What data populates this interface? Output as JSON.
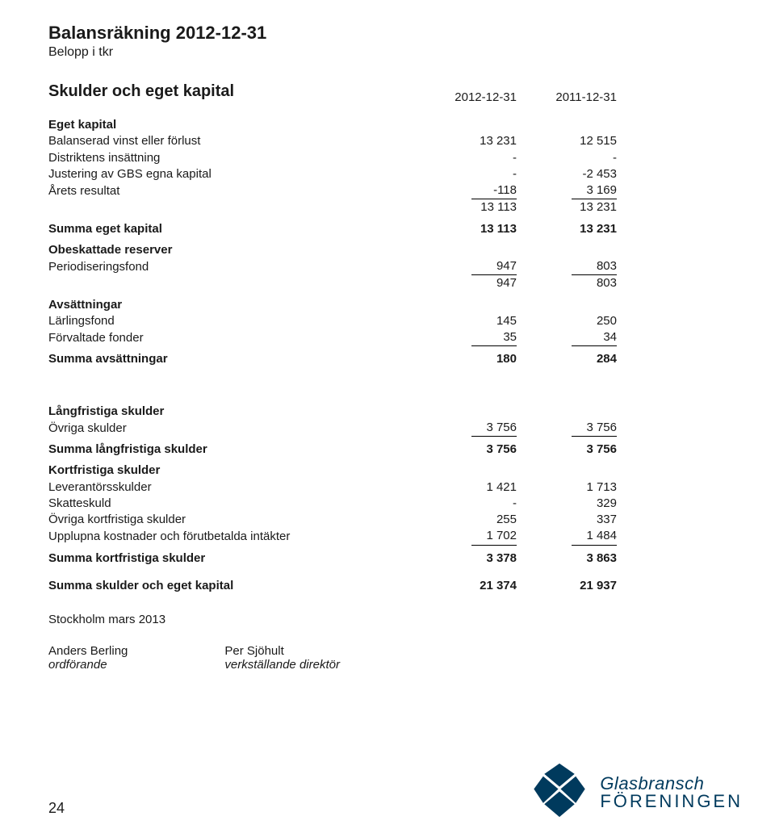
{
  "title": "Balansräkning  2012-12-31",
  "subtitle": "Belopp i tkr",
  "section_heading": "Skulder och eget kapital",
  "col_headers": [
    "2012-12-31",
    "2011-12-31"
  ],
  "groups": [
    {
      "heading": "Eget kapital",
      "rows": [
        {
          "label": "Balanserad vinst eller förlust",
          "c1": "13 231",
          "c2": "12 515"
        },
        {
          "label": "Distriktens insättning",
          "c1": "-",
          "c2": "-"
        },
        {
          "label": "Justering av GBS egna kapital",
          "c1": "-",
          "c2": "-2 453"
        },
        {
          "label": "Årets resultat",
          "c1": "-118",
          "c2": "3 169",
          "underline": true
        },
        {
          "label": "",
          "c1": "13 113",
          "c2": "13 231"
        }
      ],
      "summary": {
        "label": "Summa eget kapital",
        "c1": "13 113",
        "c2": "13 231"
      }
    },
    {
      "heading": "Obeskattade reserver",
      "rows": [
        {
          "label": "Periodiseringsfond",
          "c1": "947",
          "c2": "803",
          "underline": true
        },
        {
          "label": "",
          "c1": "947",
          "c2": "803"
        }
      ]
    },
    {
      "heading": "Avsättningar",
      "rows": [
        {
          "label": "Lärlingsfond",
          "c1": "145",
          "c2": "250"
        },
        {
          "label": "Förvaltade fonder",
          "c1": "35",
          "c2": "34",
          "underline": true
        }
      ],
      "summary": {
        "label": "Summa avsättningar",
        "c1": "180",
        "c2": "284"
      }
    },
    {
      "heading": "Långfristiga skulder",
      "rows": [
        {
          "label": "Övriga skulder",
          "c1": "3 756",
          "c2": "3 756",
          "underline": true
        }
      ],
      "summary": {
        "label": "Summa långfristiga skulder",
        "c1": "3 756",
        "c2": "3 756"
      }
    },
    {
      "heading": "Kortfristiga skulder",
      "rows": [
        {
          "label": "Leverantörsskulder",
          "c1": "1 421",
          "c2": "1 713"
        },
        {
          "label": "Skatteskuld",
          "c1": "-",
          "c2": "329"
        },
        {
          "label": "Övriga kortfristiga skulder",
          "c1": "255",
          "c2": "337"
        },
        {
          "label": "Upplupna kostnader och förutbetalda intäkter",
          "c1": "1 702",
          "c2": "1 484",
          "underline": true
        }
      ],
      "summary": {
        "label": "Summa kortfristiga skulder",
        "c1": "3 378",
        "c2": "3 863"
      }
    }
  ],
  "grand_total": {
    "label": "Summa skulder och eget kapital",
    "c1": "21 374",
    "c2": "21 937"
  },
  "location_date": "Stockholm mars 2013",
  "signatures": [
    {
      "name": "Anders Berling",
      "role": "ordförande"
    },
    {
      "name": "Per Sjöhult",
      "role": "verkställande direktör"
    }
  ],
  "page_number": "24",
  "logo": {
    "line1": "Glasbransch",
    "line2": "FÖRENINGEN",
    "color": "#003a5d"
  }
}
